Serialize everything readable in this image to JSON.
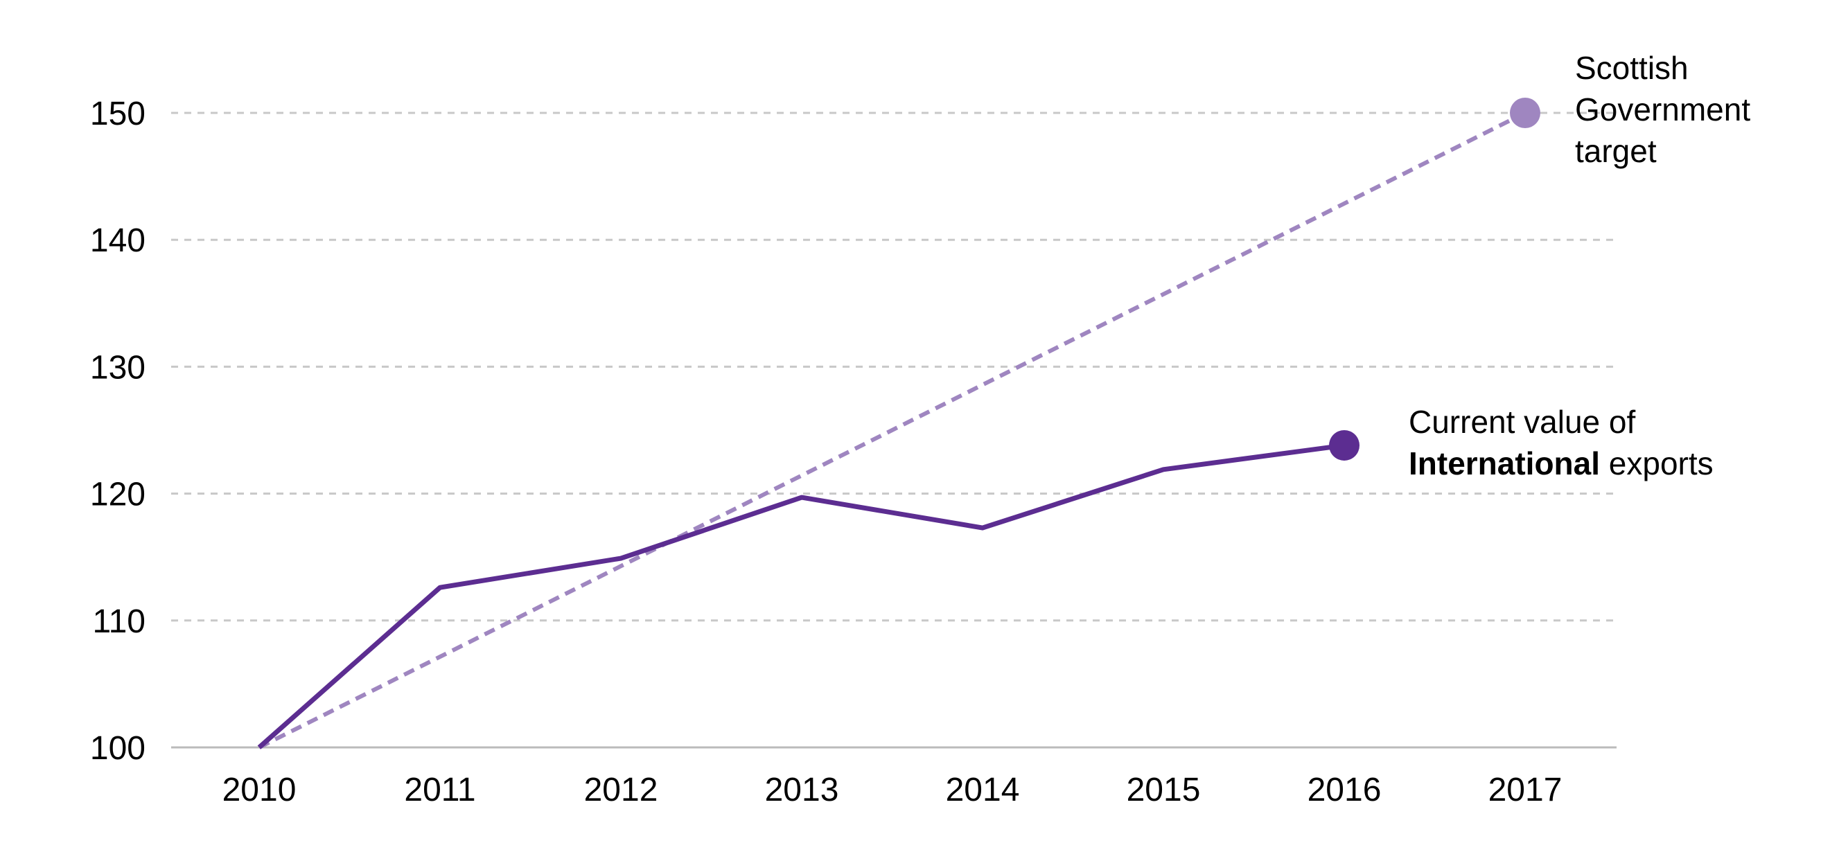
{
  "chart_data": {
    "type": "line",
    "x": [
      2010,
      2011,
      2012,
      2013,
      2014,
      2015,
      2016,
      2017
    ],
    "ylim": [
      100,
      150
    ],
    "yticks": [
      100,
      110,
      120,
      130,
      140,
      150
    ],
    "grid": true,
    "series": [
      {
        "key": "target",
        "style": "dashed",
        "color": "#9f86c0",
        "x": [
          2010,
          2017
        ],
        "values": [
          100,
          150
        ],
        "end_marker": true
      },
      {
        "key": "exports",
        "style": "solid",
        "color": "#5c2d91",
        "x": [
          2010,
          2011,
          2012,
          2013,
          2014,
          2015,
          2016
        ],
        "values": [
          100,
          112.6,
          114.9,
          119.7,
          117.3,
          121.9,
          123.8
        ],
        "end_marker": true
      }
    ],
    "annotations": {
      "target": {
        "lines": [
          "Scottish",
          "Government",
          "target"
        ]
      },
      "exports": {
        "line1": "Current  value of",
        "line2_bold": "International",
        "line2_rest": " exports"
      }
    },
    "colors": {
      "grid": "#c8c8c8",
      "axis": "#bbbbbb"
    }
  }
}
